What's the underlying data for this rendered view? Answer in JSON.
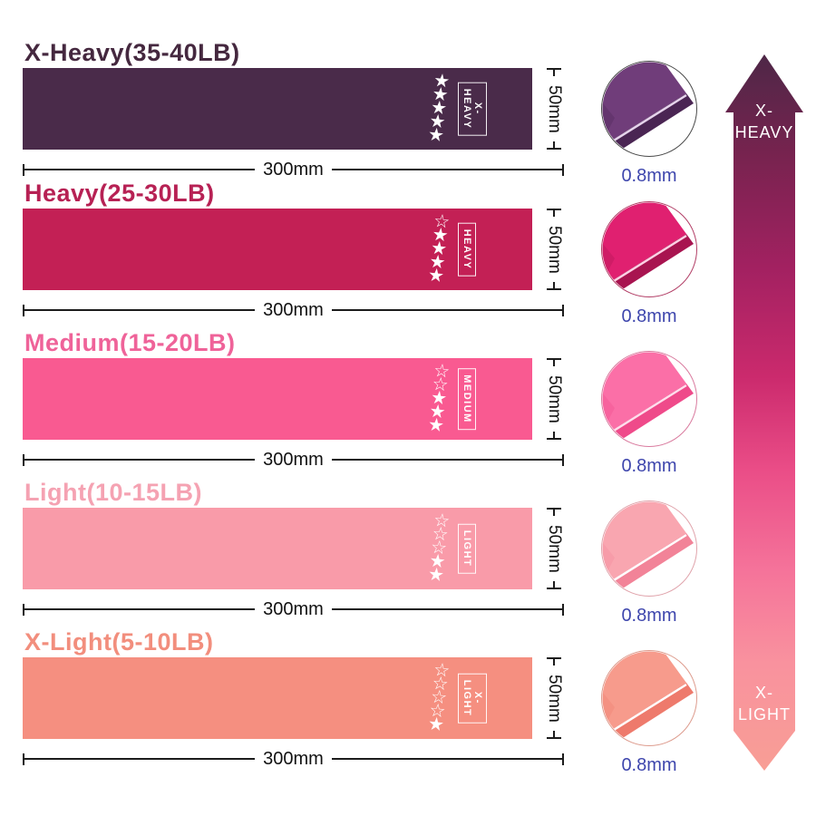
{
  "rows": [
    {
      "title": "X-Heavy(35-40LB)",
      "title_color": "#45283f",
      "band_color": "#4a2b4a",
      "band_label": "X-HEAVY",
      "stars_filled": 5,
      "stars_total": 5,
      "width_label": "300mm",
      "height_label": "50mm",
      "thickness_label": "0.8mm",
      "thumb": {
        "main": "#703d7a",
        "dark": "#4a2553",
        "edge": "#e6d4ec",
        "ring": "#4a4a4a"
      }
    },
    {
      "title": "Heavy(25-30LB)",
      "title_color": "#b72154",
      "band_color": "#c32055",
      "band_label": "HEAVY",
      "stars_filled": 4,
      "stars_total": 5,
      "width_label": "300mm",
      "height_label": "50mm",
      "thickness_label": "0.8mm",
      "thumb": {
        "main": "#e02070",
        "dark": "#a81450",
        "edge": "#ffd2e5",
        "ring": "#b23e66"
      }
    },
    {
      "title": "Medium(15-20LB)",
      "title_color": "#ef6399",
      "band_color": "#f95a91",
      "band_label": "MEDIUM",
      "stars_filled": 3,
      "stars_total": 5,
      "width_label": "300mm",
      "height_label": "50mm",
      "thickness_label": "0.8mm",
      "thumb": {
        "main": "#fb6fa7",
        "dark": "#ef4a8a",
        "edge": "#ffdeec",
        "ring": "#d97a9e"
      }
    },
    {
      "title": "Light(10-15LB)",
      "title_color": "#f5a2b2",
      "band_color": "#f99ba9",
      "band_label": "LIGHT",
      "stars_filled": 2,
      "stars_total": 5,
      "width_label": "300mm",
      "height_label": "50mm",
      "thickness_label": "0.8mm",
      "thumb": {
        "main": "#f9a6b0",
        "dark": "#f28398",
        "edge": "#ffffff",
        "ring": "#e0a3ab"
      }
    },
    {
      "title": "X-Light(5-10LB)",
      "title_color": "#f28e7d",
      "band_color": "#f58f80",
      "band_label": "X-LIGHT",
      "stars_filled": 1,
      "stars_total": 5,
      "width_label": "300mm",
      "height_label": "50mm",
      "thickness_label": "0.8mm",
      "thumb": {
        "main": "#f79b8c",
        "dark": "#ee7a6c",
        "edge": "#ffffff",
        "ring": "#dd9b8d"
      }
    }
  ],
  "arrow": {
    "top_label": [
      "X-",
      "HEAVY"
    ],
    "bottom_label": [
      "X-",
      "LIGHT"
    ],
    "gradient": [
      "#4e2747 0%",
      "#77234f 14%",
      "#a32161 30%",
      "#cb2a6d 45%",
      "#ea4d87 58%",
      "#f5739a 72%",
      "#f9929e 85%",
      "#f89e95 100%"
    ]
  }
}
